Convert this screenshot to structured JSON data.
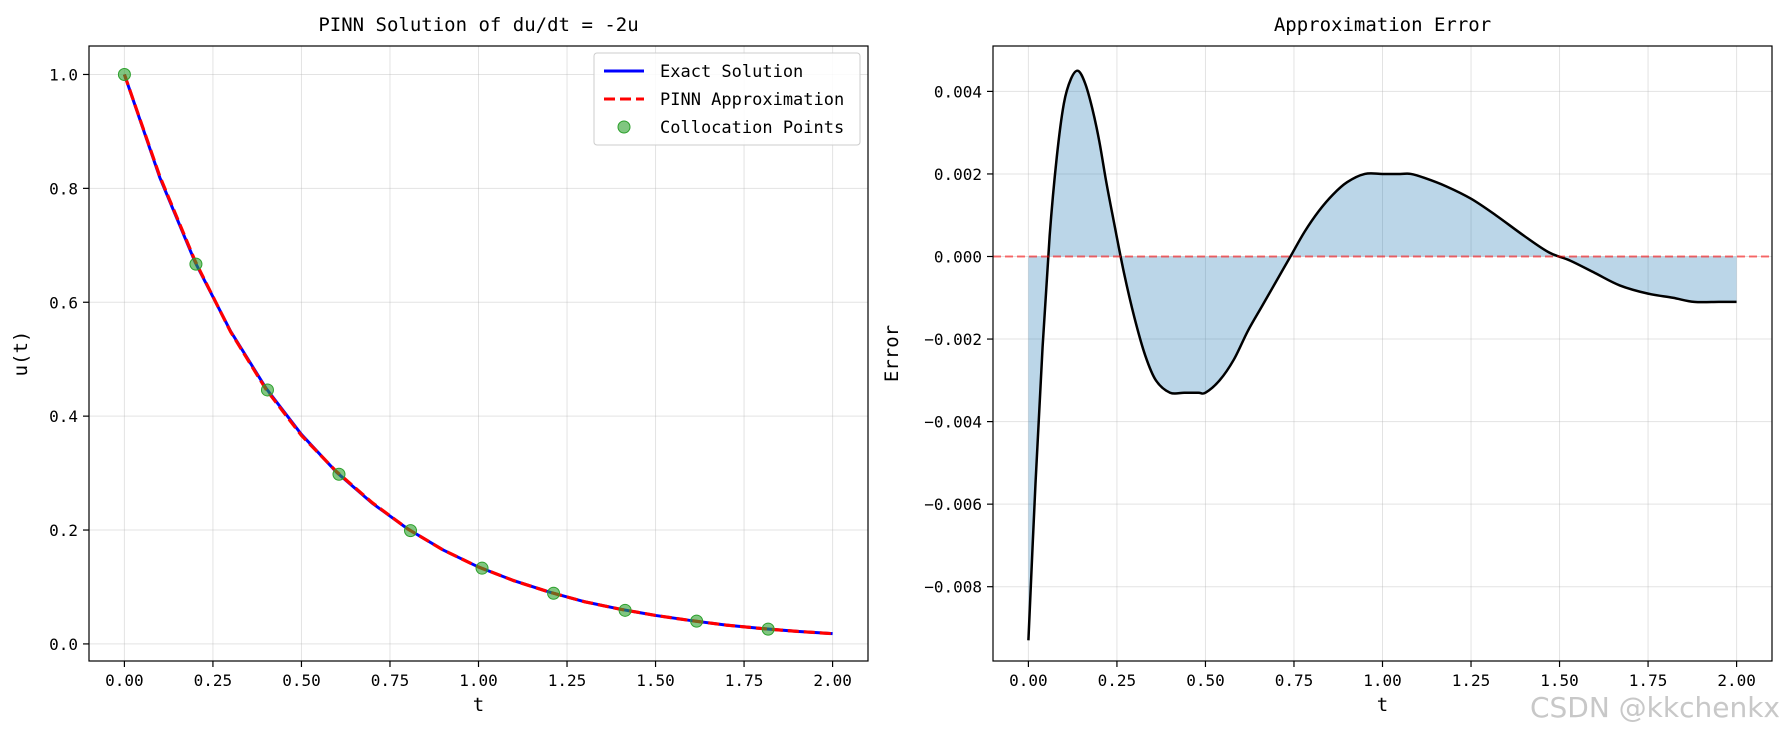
{
  "chart_data": [
    {
      "type": "line",
      "title": "PINN Solution of du/dt = -2u",
      "xlabel": "t",
      "ylabel": "u(t)",
      "xlim": [
        -0.1,
        2.1
      ],
      "ylim": [
        -0.03,
        1.05
      ],
      "xticks": [
        0,
        0.25,
        0.5,
        0.75,
        1.0,
        1.25,
        1.5,
        1.75,
        2.0
      ],
      "xtick_labels": [
        "0.00",
        "0.25",
        "0.50",
        "0.75",
        "1.00",
        "1.25",
        "1.50",
        "1.75",
        "2.00"
      ],
      "yticks": [
        0,
        0.2,
        0.4,
        0.6,
        0.8,
        1.0
      ],
      "ytick_labels": [
        "0.0",
        "0.2",
        "0.4",
        "0.6",
        "0.8",
        "1.0"
      ],
      "grid": true,
      "legend_position": "upper-right",
      "series": [
        {
          "name": "Exact Solution",
          "style": "solid",
          "color": "#0000ff",
          "x": [
            0.0,
            0.1,
            0.2,
            0.3,
            0.4,
            0.5,
            0.6,
            0.7,
            0.8,
            0.9,
            1.0,
            1.1,
            1.2,
            1.3,
            1.4,
            1.5,
            1.6,
            1.7,
            1.8,
            1.9,
            2.0
          ],
          "y": [
            1.0,
            0.819,
            0.67,
            0.549,
            0.449,
            0.368,
            0.301,
            0.247,
            0.202,
            0.165,
            0.135,
            0.111,
            0.091,
            0.074,
            0.061,
            0.05,
            0.041,
            0.033,
            0.027,
            0.022,
            0.018
          ]
        },
        {
          "name": "PINN Approximation",
          "style": "dashed",
          "color": "#ff0000",
          "x": [
            0.0,
            0.1,
            0.2,
            0.3,
            0.4,
            0.5,
            0.6,
            0.7,
            0.8,
            0.9,
            1.0,
            1.1,
            1.2,
            1.3,
            1.4,
            1.5,
            1.6,
            1.7,
            1.8,
            1.9,
            2.0
          ],
          "y": [
            1.0,
            0.821,
            0.672,
            0.548,
            0.447,
            0.366,
            0.302,
            0.248,
            0.202,
            0.165,
            0.135,
            0.111,
            0.091,
            0.074,
            0.061,
            0.05,
            0.041,
            0.033,
            0.027,
            0.022,
            0.018
          ]
        },
        {
          "name": "Collocation Points",
          "style": "scatter",
          "color": "#2ca02c",
          "x": [
            0.0,
            0.202,
            0.404,
            0.606,
            0.808,
            1.01,
            1.212,
            1.414,
            1.616,
            1.818
          ],
          "y": [
            1.0,
            0.667,
            0.446,
            0.298,
            0.199,
            0.133,
            0.089,
            0.059,
            0.04,
            0.026
          ]
        }
      ]
    },
    {
      "type": "area",
      "title": "Approximation Error",
      "xlabel": "t",
      "ylabel": "Error",
      "xlim": [
        -0.1,
        2.1
      ],
      "ylim": [
        -0.0098,
        0.0051
      ],
      "xticks": [
        0,
        0.25,
        0.5,
        0.75,
        1.0,
        1.25,
        1.5,
        1.75,
        2.0
      ],
      "xtick_labels": [
        "0.00",
        "0.25",
        "0.50",
        "0.75",
        "1.00",
        "1.25",
        "1.50",
        "1.75",
        "2.00"
      ],
      "yticks": [
        -0.008,
        -0.006,
        -0.004,
        -0.002,
        0.0,
        0.002,
        0.004
      ],
      "ytick_labels": [
        "−0.008",
        "−0.006",
        "−0.004",
        "−0.002",
        "0.000",
        "0.002",
        "0.004"
      ],
      "grid": true,
      "reference_line": {
        "y": 0,
        "style": "dashed",
        "color": "#ff0000"
      },
      "fill_color": "#1f77b4",
      "line_color": "#000000",
      "series": [
        {
          "x": [
            0.0,
            0.02,
            0.04,
            0.06,
            0.08,
            0.1,
            0.12,
            0.14,
            0.16,
            0.18,
            0.2,
            0.22,
            0.24,
            0.27,
            0.3,
            0.33,
            0.36,
            0.4,
            0.44,
            0.48,
            0.5,
            0.54,
            0.58,
            0.62,
            0.66,
            0.7,
            0.74,
            0.78,
            0.82,
            0.86,
            0.9,
            0.95,
            1.0,
            1.05,
            1.08,
            1.12,
            1.18,
            1.25,
            1.32,
            1.4,
            1.47,
            1.53,
            1.6,
            1.67,
            1.75,
            1.82,
            1.88,
            1.95,
            2.0
          ],
          "y": [
            -0.0093,
            -0.0055,
            -0.0022,
            0.0005,
            0.0024,
            0.0037,
            0.0043,
            0.0045,
            0.0042,
            0.0036,
            0.0028,
            0.0018,
            0.0009,
            -0.0004,
            -0.0015,
            -0.0024,
            -0.003,
            -0.0033,
            -0.0033,
            -0.0033,
            -0.0033,
            -0.003,
            -0.0025,
            -0.0018,
            -0.0012,
            -0.0006,
            0.0,
            0.0006,
            0.0011,
            0.0015,
            0.0018,
            0.002,
            0.002,
            0.002,
            0.002,
            0.0019,
            0.0017,
            0.0014,
            0.001,
            0.0005,
            0.0001,
            -0.0001,
            -0.0004,
            -0.0007,
            -0.0009,
            -0.001,
            -0.0011,
            -0.0011,
            -0.0011
          ]
        }
      ]
    }
  ],
  "watermark": "CSDN @kkchenkx"
}
